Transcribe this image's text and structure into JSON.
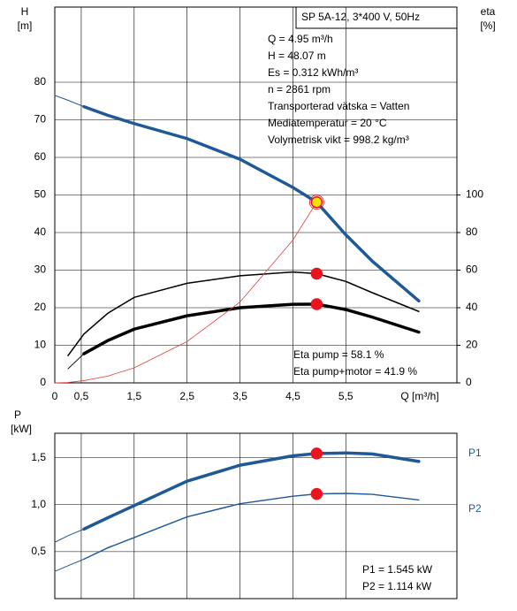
{
  "chart_data": [
    {
      "type": "line",
      "title": "SP 5A-12, 3*400 V, 50Hz",
      "ylabel": "H",
      "yunit": "[m]",
      "y2label": "eta",
      "y2unit": "[%]",
      "xlabel": "Q [m³/h]",
      "annotations": [
        "Q = 4.95 m³/h",
        "H = 48.07 m",
        "Es = 0.312 kWh/m³",
        "n = 2861 rpm",
        "Transporterad vätska = Vatten",
        "Mediatemperatur = 20 °C",
        "Volymetrisk vikt = 998.2 kg/m³"
      ],
      "notes": [
        "Eta pump = 58.1 %",
        "Eta pump+motor = 41.9 %"
      ],
      "xlim": [
        0,
        7.6
      ],
      "xticks": [
        0,
        {
          "value": 0.5,
          "label": "0,5"
        },
        {
          "value": 1.5,
          "label": "1,5"
        },
        {
          "value": 2.5,
          "label": "2,5"
        },
        {
          "value": 3.5,
          "label": "3,5"
        },
        {
          "value": 4.5,
          "label": "4,5"
        },
        {
          "value": 5.5,
          "label": "5,5"
        }
      ],
      "ylim": [
        0,
        100
      ],
      "yticks": [
        0,
        10,
        20,
        30,
        40,
        50,
        60,
        70,
        80
      ],
      "y2lim": [
        0,
        200
      ],
      "y2ticks": [
        0,
        20,
        40,
        60,
        80,
        100
      ],
      "grid": true,
      "x": [
        0,
        0.25,
        0.55,
        1,
        1.5,
        2.5,
        3.5,
        4.5,
        4.95,
        5.5,
        6,
        6.88
      ],
      "series": [
        {
          "color": "#1f5a96",
          "width": 1,
          "values": [
            76.5,
            75.2,
            73.5,
            null,
            null,
            null,
            null,
            null,
            null,
            null,
            null,
            null
          ]
        },
        {
          "color": "#1f5a96",
          "width": 3.5,
          "values": [
            null,
            null,
            73.5,
            71.2,
            69,
            65,
            59.5,
            52,
            48.07,
            39.4,
            32.4,
            21.8
          ]
        },
        {
          "color": "#000000",
          "width": 1.5,
          "axis": "y2",
          "values": [
            null,
            14.5,
            26,
            37,
            45.5,
            53,
            57,
            59,
            58.1,
            54,
            48,
            38
          ]
        },
        {
          "color": "#000000",
          "width": 1,
          "axis": "y2",
          "values": [
            null,
            7.5,
            15.5,
            null,
            null,
            null,
            null,
            null,
            null,
            null,
            null,
            null
          ]
        },
        {
          "color": "#000000",
          "width": 3.5,
          "axis": "y2",
          "values": [
            null,
            null,
            15.5,
            22.5,
            28.6,
            35.7,
            40,
            41.8,
            41.9,
            39,
            35,
            27
          ]
        },
        {
          "color": "#e04040",
          "width": 0.8,
          "values": [
            0,
            0.1,
            0.6,
            1.8,
            4,
            11,
            21.5,
            38,
            48.07,
            null,
            null,
            null
          ]
        }
      ],
      "points": [
        {
          "x": 4.95,
          "y": 48.07,
          "color": "#f5e400"
        },
        {
          "x": 4.95,
          "y": 58.1,
          "axis": "y2",
          "color": "#e8141e"
        },
        {
          "x": 4.95,
          "y": 41.9,
          "axis": "y2",
          "color": "#e8141e"
        }
      ]
    },
    {
      "type": "line",
      "ylabel": "P",
      "yunit": "[kW]",
      "notes": [
        "P1 = 1.545 kW",
        "P2 = 1.114 kW"
      ],
      "xlim": [
        0,
        7.6
      ],
      "xticks": [
        0,
        0.5,
        1.5,
        2.5,
        3.5,
        4.5,
        5.5
      ],
      "xtick_labels": false,
      "ylim": [
        0,
        1.76
      ],
      "yticks": [
        {
          "value": 0.5,
          "label": "0,5"
        },
        {
          "value": 1.0,
          "label": "1,0"
        },
        {
          "value": 1.5,
          "label": "1,5"
        }
      ],
      "grid": true,
      "x": [
        0,
        0.25,
        0.55,
        1,
        1.5,
        2.5,
        3.5,
        4.5,
        4.95,
        5.5,
        6,
        6.88
      ],
      "series": [
        {
          "color": "#1f5a96",
          "width": 1,
          "values": [
            0.6,
            0.67,
            0.74,
            null,
            null,
            null,
            null,
            null,
            null,
            null,
            null,
            null
          ]
        },
        {
          "name": "P1",
          "color": "#1f5a96",
          "width": 3.5,
          "values": [
            null,
            null,
            0.74,
            0.86,
            0.99,
            1.25,
            1.42,
            1.52,
            1.545,
            1.55,
            1.54,
            1.46
          ]
        },
        {
          "color": "#1f5a96",
          "width": 1,
          "values": [
            0.29,
            0.35,
            0.42,
            null,
            null,
            null,
            null,
            null,
            null,
            null,
            null,
            null
          ]
        },
        {
          "name": "P2",
          "color": "#1f5a96",
          "width": 1.5,
          "values": [
            null,
            null,
            0.42,
            0.54,
            0.65,
            0.87,
            1.01,
            1.09,
            1.114,
            1.12,
            1.11,
            1.05
          ]
        }
      ],
      "points": [
        {
          "x": 4.95,
          "y": 1.545,
          "color": "#e8141e"
        },
        {
          "x": 4.95,
          "y": 1.114,
          "color": "#e8141e"
        }
      ]
    }
  ]
}
